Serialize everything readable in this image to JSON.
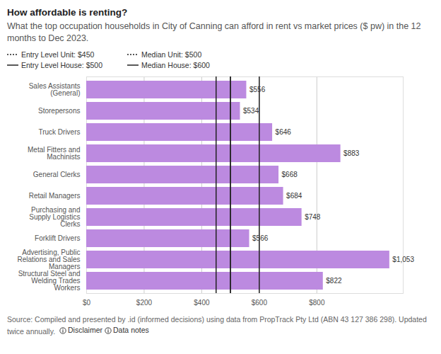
{
  "chart_data": {
    "type": "bar",
    "orientation": "horizontal",
    "title": "How affordable is renting?",
    "subtitle": "What the top occupation households in City of Canning can afford in rent vs market prices ($ pw) in the 12 months to Dec 2023.",
    "categories": [
      "Sales Assistants (General)",
      "Storepersons",
      "Truck Drivers",
      "Metal Fitters and Machinists",
      "General Clerks",
      "Retail Managers",
      "Purchasing and Supply Logistics Clerks",
      "Forklift Drivers",
      "Advertising, Public Relations and Sales Managers",
      "Structural Steel and Welding Trades Workers"
    ],
    "values": [
      556,
      534,
      646,
      883,
      668,
      684,
      748,
      566,
      1053,
      822
    ],
    "value_labels": [
      "$556",
      "$534",
      "$646",
      "$883",
      "$668",
      "$684",
      "$748",
      "$566",
      "$1,053",
      "$822"
    ],
    "data_labels": true,
    "color": "#bc8ae0",
    "xlim": [
      0,
      1100
    ],
    "xticks": [
      {
        "value": 0,
        "label": "$0"
      },
      {
        "value": 200,
        "label": "$200"
      },
      {
        "value": 400,
        "label": "$400"
      },
      {
        "value": 600,
        "label": "$600"
      },
      {
        "value": 800,
        "label": "$800"
      }
    ],
    "grid": true,
    "reference_lines": [
      {
        "name": "Entry Level Unit: $450",
        "value": 450,
        "line_style": "dotted"
      },
      {
        "name": "Median Unit: $500",
        "value": 500,
        "line_style": "dotted"
      },
      {
        "name": "Entry Level House: $500",
        "value": 500,
        "line_style": "solid"
      },
      {
        "name": "Median House: $600",
        "value": 600,
        "line_style": "solid"
      }
    ],
    "source": "Source: Compiled and presented by .id (informed decisions) using data from PropTrack Pty Ltd (ABN 43 127 386 298). Updated twice annually.",
    "links": [
      "Disclaimer",
      "Data notes"
    ]
  }
}
